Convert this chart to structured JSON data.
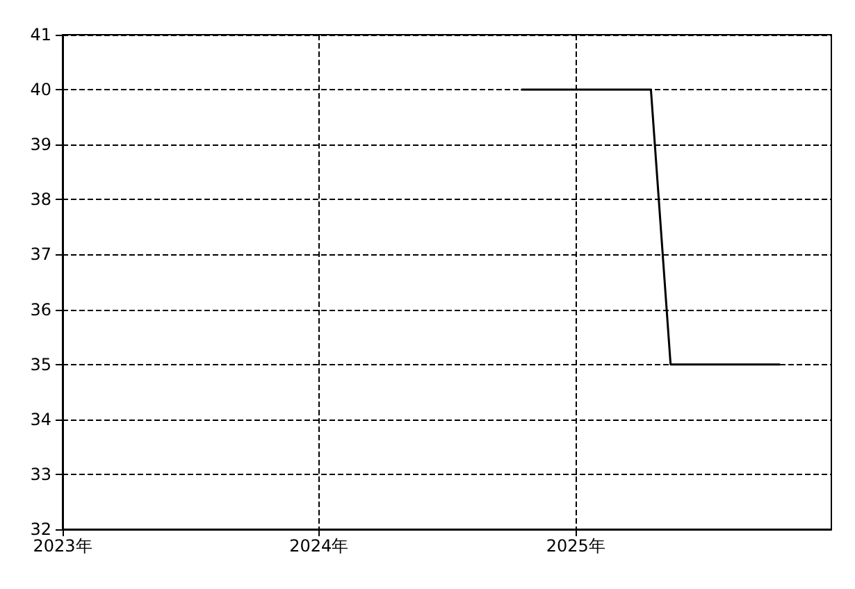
{
  "chart_data": {
    "type": "line",
    "x": [
      "2024-10-16",
      "2025-04-18",
      "2025-05-16",
      "2025-10-18"
    ],
    "series": [
      {
        "color": "#000000",
        "values": [
          40,
          40,
          35,
          35
        ]
      }
    ],
    "xlim": [
      "2023-01-01",
      "2025-12-31"
    ],
    "xticks": [
      {
        "value": "2023-01-01",
        "label": "2023年"
      },
      {
        "value": "2024-01-01",
        "label": "2024年"
      },
      {
        "value": "2025-01-01",
        "label": "2025年"
      }
    ],
    "ylim": [
      32,
      41
    ],
    "yticks": [
      32,
      33,
      34,
      35,
      36,
      37,
      38,
      39,
      40,
      41
    ],
    "grid": true,
    "marker": "none",
    "line_style": "solid"
  }
}
